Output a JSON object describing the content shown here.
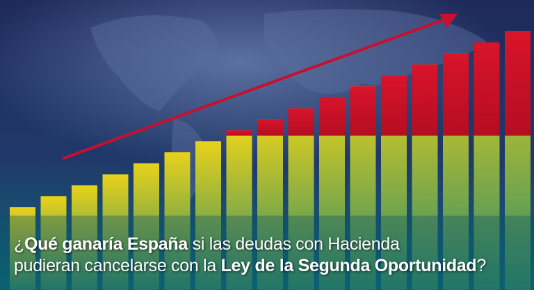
{
  "caption": {
    "line_1": [
      "¿",
      "Qué ganaría España",
      " si las deudas con Hacienda"
    ],
    "line_2": [
      "pudieran cancelarse con la ",
      "Ley de la Segunda Oportunidad",
      "?"
    ]
  }
}
